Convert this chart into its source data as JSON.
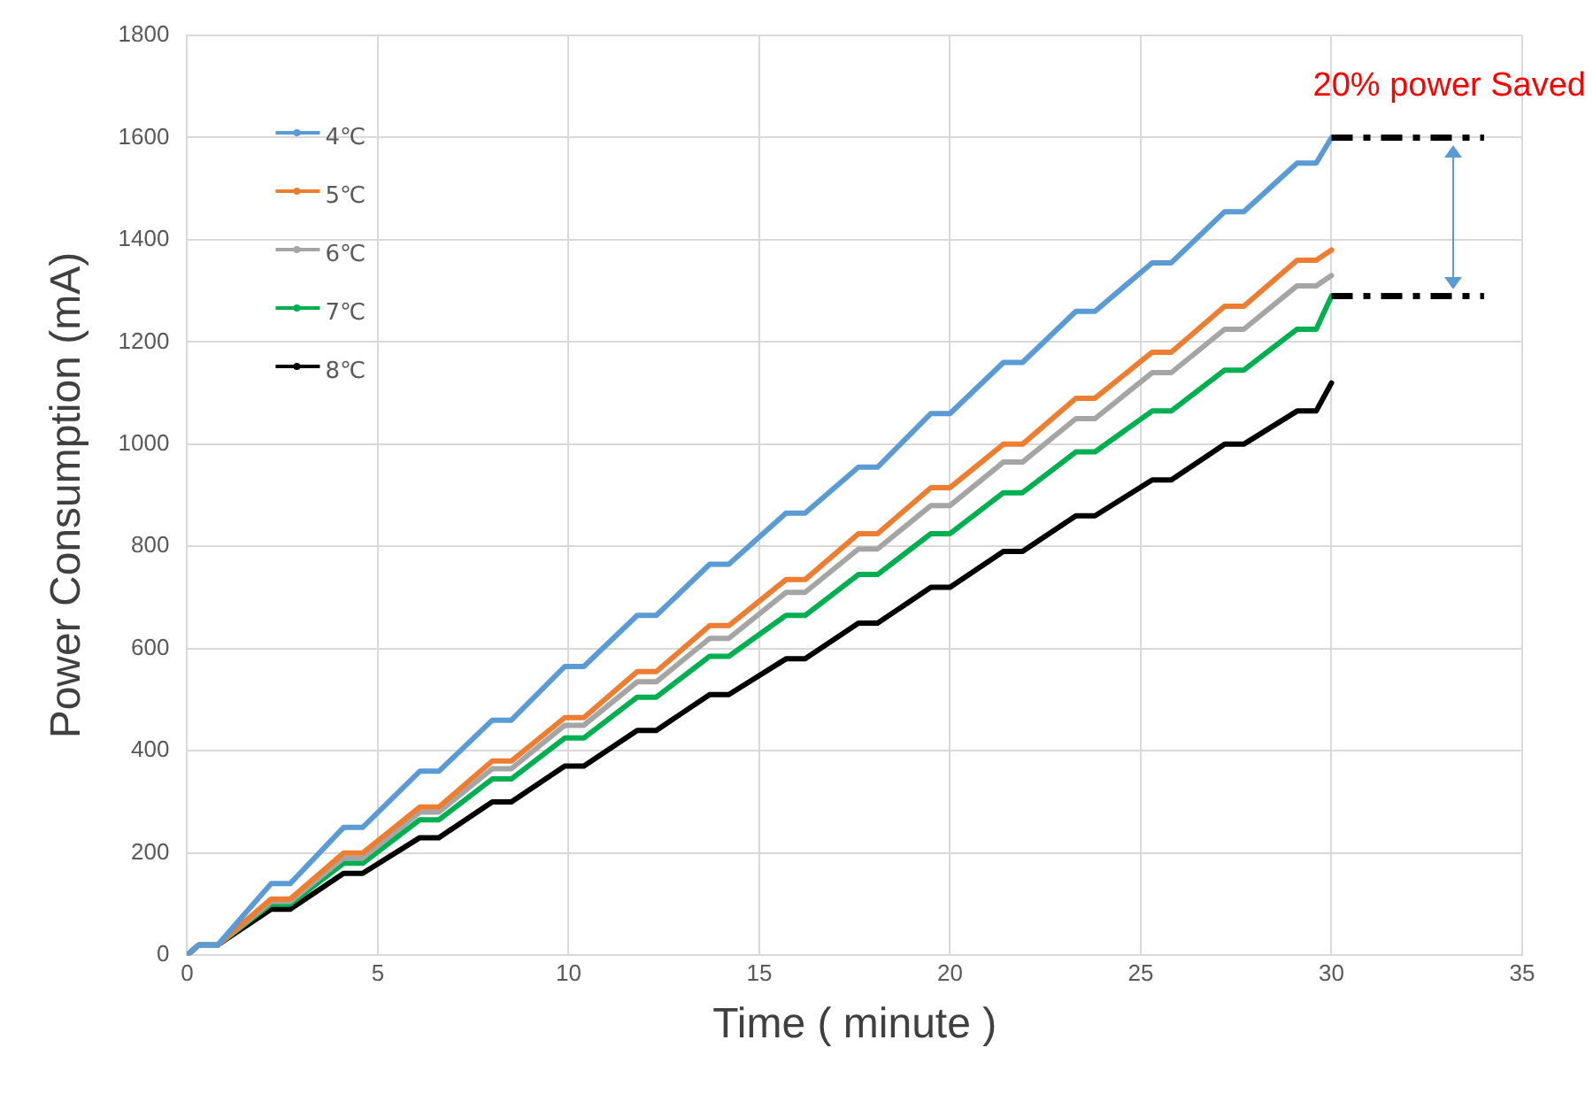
{
  "chart_data": {
    "type": "line",
    "xlabel": "Time ( minute )",
    "ylabel": "Power Consumption (mA)",
    "x": [
      0,
      0.3,
      0.8,
      2.2,
      2.7,
      4.1,
      4.6,
      6.1,
      6.6,
      8.0,
      8.5,
      9.9,
      10.4,
      11.8,
      12.3,
      13.7,
      14.2,
      15.7,
      16.2,
      17.6,
      18.1,
      19.5,
      20.0,
      21.4,
      21.9,
      23.3,
      23.8,
      25.3,
      25.8,
      27.2,
      27.7,
      29.1,
      29.6,
      30,
      34
    ],
    "series": [
      {
        "name": "4℃",
        "color": "#5b9bd5",
        "values": [
          0,
          20,
          20,
          140,
          140,
          250,
          250,
          360,
          360,
          460,
          460,
          565,
          565,
          665,
          665,
          765,
          765,
          865,
          865,
          955,
          955,
          1060,
          1060,
          1160,
          1160,
          1260,
          1260,
          1355,
          1355,
          1455,
          1455,
          1550,
          1550,
          1600,
          null
        ]
      },
      {
        "name": "5℃",
        "color": "#ed7d31",
        "values": [
          0,
          20,
          20,
          110,
          110,
          200,
          200,
          290,
          290,
          380,
          380,
          465,
          465,
          555,
          555,
          645,
          645,
          735,
          735,
          825,
          825,
          915,
          915,
          1000,
          1000,
          1090,
          1090,
          1180,
          1180,
          1270,
          1270,
          1360,
          1360,
          1380,
          null
        ]
      },
      {
        "name": "6℃",
        "color": "#a5a5a5",
        "values": [
          0,
          20,
          20,
          105,
          105,
          190,
          190,
          280,
          280,
          365,
          365,
          450,
          450,
          535,
          535,
          620,
          620,
          710,
          710,
          795,
          795,
          880,
          880,
          965,
          965,
          1050,
          1050,
          1140,
          1140,
          1225,
          1225,
          1310,
          1310,
          1330,
          null
        ]
      },
      {
        "name": "7℃",
        "color": "#00b050",
        "values": [
          0,
          20,
          20,
          100,
          100,
          180,
          180,
          265,
          265,
          345,
          345,
          425,
          425,
          505,
          505,
          585,
          585,
          665,
          665,
          745,
          745,
          825,
          825,
          905,
          905,
          985,
          985,
          1065,
          1065,
          1145,
          1145,
          1225,
          1225,
          1290,
          null
        ]
      },
      {
        "name": "8℃",
        "color": "#000000",
        "values": [
          0,
          20,
          20,
          90,
          90,
          160,
          160,
          230,
          230,
          300,
          300,
          370,
          370,
          440,
          440,
          510,
          510,
          580,
          580,
          650,
          650,
          720,
          720,
          790,
          790,
          860,
          860,
          930,
          930,
          1000,
          1000,
          1065,
          1065,
          1120,
          null
        ]
      },
      {
        "type": "line",
        "color": "#000000",
        "line_style": "dashed",
        "values": [
          null,
          null,
          null,
          null,
          null,
          null,
          null,
          null,
          null,
          null,
          null,
          null,
          null,
          null,
          null,
          null,
          null,
          null,
          null,
          null,
          null,
          null,
          null,
          null,
          null,
          null,
          null,
          null,
          null,
          null,
          null,
          null,
          null,
          1600,
          1600
        ]
      },
      {
        "type": "line",
        "color": "#000000",
        "line_style": "dashed",
        "values": [
          null,
          null,
          null,
          null,
          null,
          null,
          null,
          null,
          null,
          null,
          null,
          null,
          null,
          null,
          null,
          null,
          null,
          null,
          null,
          null,
          null,
          null,
          null,
          null,
          null,
          null,
          null,
          null,
          null,
          null,
          null,
          null,
          null,
          1290,
          1290
        ]
      }
    ],
    "xlim": [
      0,
      35
    ],
    "xticks": [
      0,
      5,
      10,
      15,
      20,
      25,
      30,
      35
    ],
    "ylim": [
      0,
      1800
    ],
    "yticks": [
      0,
      200,
      400,
      600,
      800,
      1000,
      1200,
      1400,
      1600,
      1800
    ],
    "grid": true,
    "legend": "top left",
    "annotations": [
      "20% power Saved"
    ]
  }
}
